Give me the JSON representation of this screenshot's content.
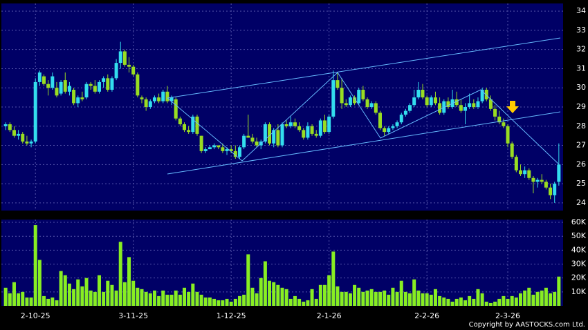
{
  "chart_data": [
    {
      "type": "candlestick",
      "up_color": "#33ddee",
      "down_color": "#99dd22",
      "background": "#000066",
      "grid": true,
      "xlim": [
        -1,
        131
      ],
      "xticks": [
        {
          "value": 7,
          "label": "2-10-25"
        },
        {
          "value": 30,
          "label": "3-11-25"
        },
        {
          "value": 53,
          "label": "1-12-25"
        },
        {
          "value": 76,
          "label": "2-1-26"
        },
        {
          "value": 99,
          "label": "2-2-26"
        },
        {
          "value": 118,
          "label": "2-3-26"
        }
      ],
      "ylim": [
        23.6,
        34.4
      ],
      "yticks": [
        24,
        25,
        26,
        27,
        28,
        29,
        30,
        31,
        32,
        33,
        34
      ],
      "ohlc": [
        [
          28.0,
          28.2,
          27.8,
          28.1
        ],
        [
          28.1,
          28.2,
          27.7,
          27.8
        ],
        [
          27.8,
          28.0,
          27.4,
          27.5
        ],
        [
          27.5,
          27.8,
          27.3,
          27.6
        ],
        [
          27.6,
          27.7,
          27.1,
          27.2
        ],
        [
          27.2,
          27.5,
          27.0,
          27.1
        ],
        [
          27.1,
          27.3,
          26.9,
          27.2
        ],
        [
          27.2,
          30.5,
          27.1,
          30.3
        ],
        [
          30.3,
          30.9,
          30.1,
          30.8
        ],
        [
          30.6,
          30.7,
          30.1,
          30.2
        ],
        [
          30.2,
          30.4,
          29.6,
          30.0
        ],
        [
          30.0,
          30.8,
          29.9,
          30.6
        ],
        [
          30.0,
          30.3,
          29.5,
          29.6
        ],
        [
          29.7,
          30.4,
          29.6,
          30.3
        ],
        [
          30.4,
          30.8,
          29.7,
          29.8
        ],
        [
          29.8,
          30.3,
          29.6,
          30.1
        ],
        [
          29.9,
          30.0,
          29.1,
          29.2
        ],
        [
          29.2,
          29.6,
          29.0,
          29.5
        ],
        [
          29.5,
          29.8,
          29.3,
          29.4
        ],
        [
          29.5,
          30.3,
          29.4,
          30.2
        ],
        [
          30.2,
          30.3,
          29.9,
          30.1
        ],
        [
          30.1,
          30.4,
          29.7,
          29.8
        ],
        [
          29.8,
          30.4,
          29.7,
          30.3
        ],
        [
          30.3,
          30.6,
          30.0,
          30.5
        ],
        [
          30.5,
          30.7,
          29.8,
          29.9
        ],
        [
          29.9,
          30.6,
          29.8,
          30.5
        ],
        [
          30.5,
          31.5,
          30.4,
          31.3
        ],
        [
          31.3,
          32.4,
          31.0,
          31.9
        ],
        [
          31.9,
          32.0,
          31.1,
          31.2
        ],
        [
          31.2,
          31.6,
          30.8,
          31.1
        ],
        [
          31.1,
          31.2,
          30.6,
          30.7
        ],
        [
          30.7,
          30.8,
          29.5,
          29.6
        ],
        [
          29.5,
          29.6,
          29.2,
          29.4
        ],
        [
          29.4,
          29.5,
          28.8,
          29.0
        ],
        [
          29.0,
          29.4,
          28.9,
          29.3
        ],
        [
          29.3,
          29.6,
          29.2,
          29.5
        ],
        [
          29.5,
          29.7,
          29.2,
          29.3
        ],
        [
          29.3,
          29.9,
          29.2,
          29.8
        ],
        [
          29.8,
          30.1,
          29.2,
          29.3
        ],
        [
          29.3,
          29.6,
          29.1,
          29.5
        ],
        [
          29.4,
          29.5,
          28.3,
          28.4
        ],
        [
          28.4,
          28.5,
          28.0,
          28.1
        ],
        [
          28.1,
          28.2,
          27.7,
          27.8
        ],
        [
          27.8,
          28.0,
          27.6,
          27.7
        ],
        [
          27.7,
          28.6,
          27.6,
          28.5
        ],
        [
          28.5,
          28.6,
          27.5,
          27.6
        ],
        [
          27.5,
          27.5,
          26.6,
          26.7
        ],
        [
          26.7,
          26.9,
          26.6,
          26.8
        ],
        [
          26.8,
          27.0,
          26.8,
          26.9
        ],
        [
          26.9,
          27.1,
          26.8,
          27.0
        ],
        [
          27.0,
          27.0,
          26.8,
          26.9
        ],
        [
          26.9,
          27.1,
          26.6,
          26.7
        ],
        [
          26.7,
          26.9,
          26.5,
          26.8
        ],
        [
          26.8,
          27.0,
          26.6,
          26.7
        ],
        [
          26.7,
          27.0,
          26.3,
          26.4
        ],
        [
          26.4,
          27.0,
          26.3,
          26.9
        ],
        [
          26.9,
          27.6,
          26.8,
          27.5
        ],
        [
          27.5,
          28.6,
          27.4,
          27.4
        ],
        [
          27.4,
          27.6,
          27.1,
          27.2
        ],
        [
          27.2,
          27.4,
          26.9,
          27.0
        ],
        [
          27.0,
          27.3,
          26.8,
          27.2
        ],
        [
          27.2,
          28.2,
          27.1,
          28.1
        ],
        [
          28.1,
          28.2,
          27.0,
          27.1
        ],
        [
          27.1,
          27.9,
          26.9,
          27.8
        ],
        [
          27.8,
          28.1,
          26.9,
          27.0
        ],
        [
          27.0,
          28.2,
          26.9,
          28.1
        ],
        [
          28.1,
          28.3,
          27.9,
          28.0
        ],
        [
          28.0,
          28.5,
          27.9,
          28.2
        ],
        [
          28.2,
          28.4,
          27.9,
          28.0
        ],
        [
          28.0,
          28.2,
          27.7,
          27.8
        ],
        [
          27.8,
          27.9,
          27.3,
          27.4
        ],
        [
          27.4,
          28.2,
          27.3,
          28.0
        ],
        [
          28.0,
          28.1,
          27.5,
          27.6
        ],
        [
          27.6,
          27.8,
          27.4,
          27.5
        ],
        [
          27.5,
          28.4,
          27.4,
          28.3
        ],
        [
          28.3,
          28.6,
          27.6,
          27.7
        ],
        [
          27.7,
          28.6,
          27.6,
          28.5
        ],
        [
          28.5,
          30.9,
          28.4,
          30.4
        ],
        [
          30.4,
          30.8,
          29.9,
          30.0
        ],
        [
          30.0,
          30.5,
          28.9,
          29.2
        ],
        [
          29.2,
          29.4,
          29.0,
          29.1
        ],
        [
          29.1,
          29.6,
          29.0,
          29.5
        ],
        [
          29.5,
          29.6,
          29.1,
          29.2
        ],
        [
          29.2,
          30.0,
          29.1,
          29.9
        ],
        [
          29.9,
          30.1,
          29.3,
          29.4
        ],
        [
          29.4,
          29.5,
          28.9,
          29.0
        ],
        [
          29.0,
          29.3,
          28.9,
          29.2
        ],
        [
          29.2,
          29.3,
          28.6,
          28.7
        ],
        [
          28.7,
          28.8,
          27.8,
          27.9
        ],
        [
          27.9,
          28.0,
          27.5,
          27.7
        ],
        [
          27.7,
          28.0,
          27.6,
          27.9
        ],
        [
          27.9,
          28.1,
          27.8,
          28.0
        ],
        [
          28.0,
          28.3,
          27.9,
          28.2
        ],
        [
          28.2,
          28.7,
          28.1,
          28.6
        ],
        [
          28.6,
          28.9,
          28.5,
          28.8
        ],
        [
          28.8,
          29.2,
          28.7,
          29.1
        ],
        [
          29.1,
          29.9,
          29.0,
          29.5
        ],
        [
          29.5,
          30.3,
          29.4,
          29.9
        ],
        [
          29.9,
          30.2,
          29.4,
          29.5
        ],
        [
          29.5,
          29.6,
          29.0,
          29.1
        ],
        [
          29.1,
          29.6,
          29.0,
          29.5
        ],
        [
          29.5,
          29.8,
          29.1,
          29.2
        ],
        [
          29.2,
          29.5,
          28.6,
          28.7
        ],
        [
          28.7,
          29.4,
          28.6,
          29.3
        ],
        [
          29.3,
          29.5,
          28.9,
          29.0
        ],
        [
          29.0,
          29.9,
          28.9,
          29.4
        ],
        [
          29.4,
          29.8,
          29.0,
          29.1
        ],
        [
          29.1,
          29.4,
          28.7,
          28.8
        ],
        [
          28.8,
          29.2,
          28.1,
          29.0
        ],
        [
          29.0,
          29.7,
          28.9,
          29.2
        ],
        [
          29.2,
          29.4,
          28.9,
          29.0
        ],
        [
          29.0,
          29.5,
          28.9,
          29.3
        ],
        [
          29.3,
          30.0,
          29.2,
          29.9
        ],
        [
          29.9,
          30.0,
          29.3,
          29.4
        ],
        [
          29.4,
          29.6,
          28.8,
          28.9
        ],
        [
          28.9,
          29.1,
          28.3,
          28.5
        ],
        [
          28.5,
          28.8,
          28.1,
          28.2
        ],
        [
          28.2,
          28.4,
          27.9,
          28.0
        ],
        [
          28.0,
          28.1,
          26.9,
          27.1
        ],
        [
          27.1,
          27.2,
          26.3,
          26.4
        ],
        [
          26.4,
          26.5,
          25.6,
          25.7
        ],
        [
          25.7,
          26.0,
          25.4,
          25.5
        ],
        [
          25.5,
          25.9,
          25.3,
          25.7
        ],
        [
          25.7,
          25.8,
          25.2,
          25.3
        ],
        [
          25.3,
          25.4,
          24.5,
          25.1
        ],
        [
          25.1,
          25.3,
          24.8,
          25.2
        ],
        [
          25.2,
          25.5,
          25.0,
          25.1
        ],
        [
          25.1,
          25.2,
          24.7,
          24.8
        ],
        [
          24.8,
          25.0,
          24.2,
          24.4
        ],
        [
          24.4,
          25.1,
          24.0,
          25.0
        ],
        [
          25.1,
          27.1,
          24.9,
          26.0
        ]
      ]
    },
    {
      "type": "bar",
      "color": "#88ee22",
      "background": "#000066",
      "grid": true,
      "xlim": [
        -1,
        131
      ],
      "xticks": [
        {
          "value": 7,
          "label": "2-10-25"
        },
        {
          "value": 30,
          "label": "3-11-25"
        },
        {
          "value": 53,
          "label": "1-12-25"
        },
        {
          "value": 76,
          "label": "2-1-26"
        },
        {
          "value": 99,
          "label": "2-2-26"
        },
        {
          "value": 118,
          "label": "2-3-26"
        }
      ],
      "ylim": [
        0,
        62000
      ],
      "yticks": [
        {
          "value": 10000,
          "label": "10K"
        },
        {
          "value": 20000,
          "label": "20K"
        },
        {
          "value": 30000,
          "label": "30K"
        },
        {
          "value": 40000,
          "label": "40K"
        },
        {
          "value": 50000,
          "label": "50K"
        },
        {
          "value": 60000,
          "label": "60K"
        }
      ],
      "values": [
        13000,
        9000,
        17000,
        9000,
        10000,
        6000,
        6000,
        58000,
        33000,
        7000,
        5000,
        6000,
        4000,
        25000,
        22000,
        16000,
        12000,
        19000,
        14000,
        20000,
        11000,
        10000,
        22000,
        10000,
        18000,
        15000,
        11000,
        46000,
        17000,
        35000,
        18000,
        13000,
        12000,
        10000,
        9000,
        11000,
        7000,
        11000,
        8000,
        8000,
        11000,
        8000,
        13000,
        10000,
        16000,
        10000,
        8000,
        6000,
        6000,
        5000,
        4000,
        4000,
        5000,
        3000,
        5000,
        7000,
        8000,
        37000,
        13000,
        9000,
        20000,
        32000,
        18000,
        17000,
        15000,
        13000,
        12000,
        5000,
        7000,
        5000,
        3000,
        4000,
        12000,
        5000,
        15000,
        15000,
        22000,
        39000,
        14000,
        10000,
        10000,
        9000,
        15000,
        13000,
        10000,
        11000,
        12000,
        10000,
        10000,
        11000,
        8000,
        13000,
        10000,
        18000,
        10000,
        9000,
        19000,
        11000,
        9000,
        9000,
        8000,
        12000,
        7000,
        6000,
        5000,
        3000,
        5000,
        6000,
        4000,
        7000,
        5000,
        12000,
        9000,
        3000,
        2000,
        3000,
        5000,
        7000,
        5000,
        7000,
        6000,
        9000,
        11000,
        13000,
        8000,
        10000,
        11000,
        13000,
        9000,
        10000,
        21000
      ]
    }
  ],
  "footer": "Copyright by AASTOCKS.com Ltd."
}
